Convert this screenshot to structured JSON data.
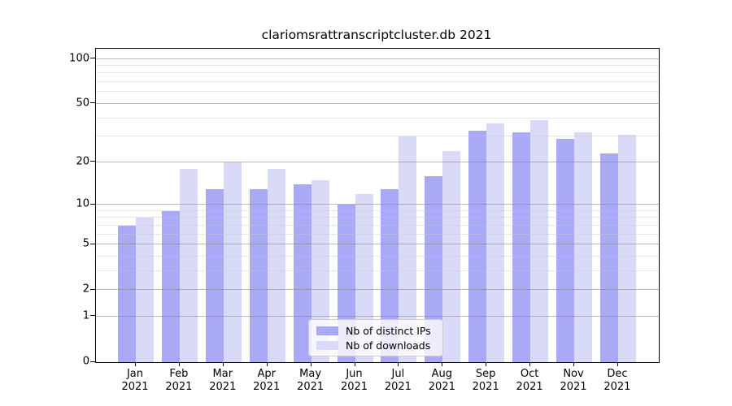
{
  "title": "clariomsrattranscriptcluster.db 2021",
  "chart_data": {
    "type": "bar",
    "title": "clariomsrattranscriptcluster.db 2021",
    "categories": [
      "Jan 2021",
      "Feb 2021",
      "Mar 2021",
      "Apr 2021",
      "May 2021",
      "Jun 2021",
      "Jul 2021",
      "Aug 2021",
      "Sep 2021",
      "Oct 2021",
      "Nov 2021",
      "Dec 2021"
    ],
    "month_labels": [
      "Jan",
      "Feb",
      "Mar",
      "Apr",
      "May",
      "Jun",
      "Jul",
      "Aug",
      "Sep",
      "Oct",
      "Nov",
      "Dec"
    ],
    "year_label": "2021",
    "series": [
      {
        "name": "Nb of distinct IPs",
        "color": "#a9a9f5",
        "values": [
          7,
          9,
          13,
          13,
          14,
          10,
          13,
          16,
          33,
          32,
          29,
          23
        ]
      },
      {
        "name": "Nb of downloads",
        "color": "#d9d9f8",
        "values": [
          8,
          18,
          20,
          18,
          15,
          12,
          30,
          24,
          37,
          39,
          32,
          31
        ]
      }
    ],
    "xlabel": "",
    "ylabel": "",
    "yscale": "log1p",
    "ylim": [
      0,
      117
    ],
    "yticks": [
      0,
      1,
      2,
      5,
      10,
      20,
      50,
      100
    ],
    "yticks_minor": [
      3,
      4,
      6,
      7,
      8,
      9,
      30,
      40,
      60,
      70,
      80,
      90
    ],
    "grid": true,
    "legend_position": "lower center"
  },
  "colors": {
    "bar_dark": "#a9a9f5",
    "bar_light": "#d9d9f8",
    "grid_major": "#828282",
    "grid_minor": "#c8c8c8",
    "frame": "#000000",
    "background": "#ffffff",
    "text": "#000000"
  }
}
